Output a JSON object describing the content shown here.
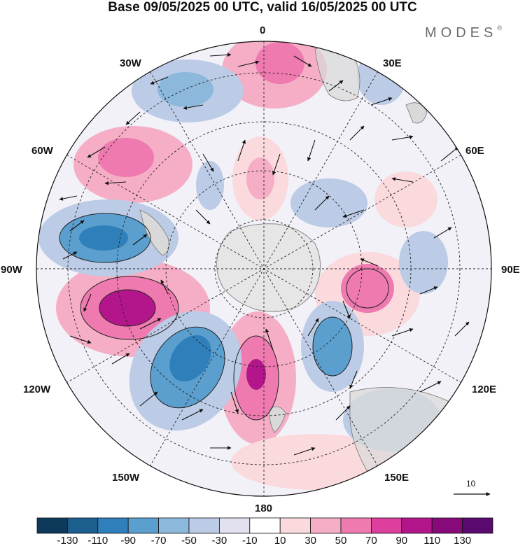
{
  "title": "Base 09/05/2025 00 UTC, valid 16/05/2025 00 UTC",
  "brand": "MODES",
  "brand_mark": "®",
  "longitude_labels": {
    "lon_0": "0",
    "lon_30e": "30E",
    "lon_60e": "60E",
    "lon_90e": "90E",
    "lon_120e": "120E",
    "lon_150e": "150E",
    "lon_180": "180",
    "lon_150w": "150W",
    "lon_120w": "120W",
    "lon_90w": "90W",
    "lon_60w": "60W",
    "lon_30w": "30W"
  },
  "reference_vector_label": "10",
  "colorbar": {
    "labels": [
      "-130",
      "-110",
      "-90",
      "-70",
      "-50",
      "-30",
      "-10",
      "10",
      "30",
      "50",
      "70",
      "90",
      "110",
      "130"
    ],
    "colors": [
      "#0d3a5a",
      "#1c5f8f",
      "#2f7fbb",
      "#5a9fce",
      "#8cb8dc",
      "#bccbe6",
      "#e2e1f0",
      "#ffffff",
      "#fadadd",
      "#f5aec5",
      "#ee7ab0",
      "#dc3f9c",
      "#b3168a",
      "#860a78",
      "#5a0a6e"
    ]
  },
  "map_colors": {
    "land": "#d9d9d9",
    "antarctica": "#e6e6e6",
    "grid": "#222222"
  }
}
